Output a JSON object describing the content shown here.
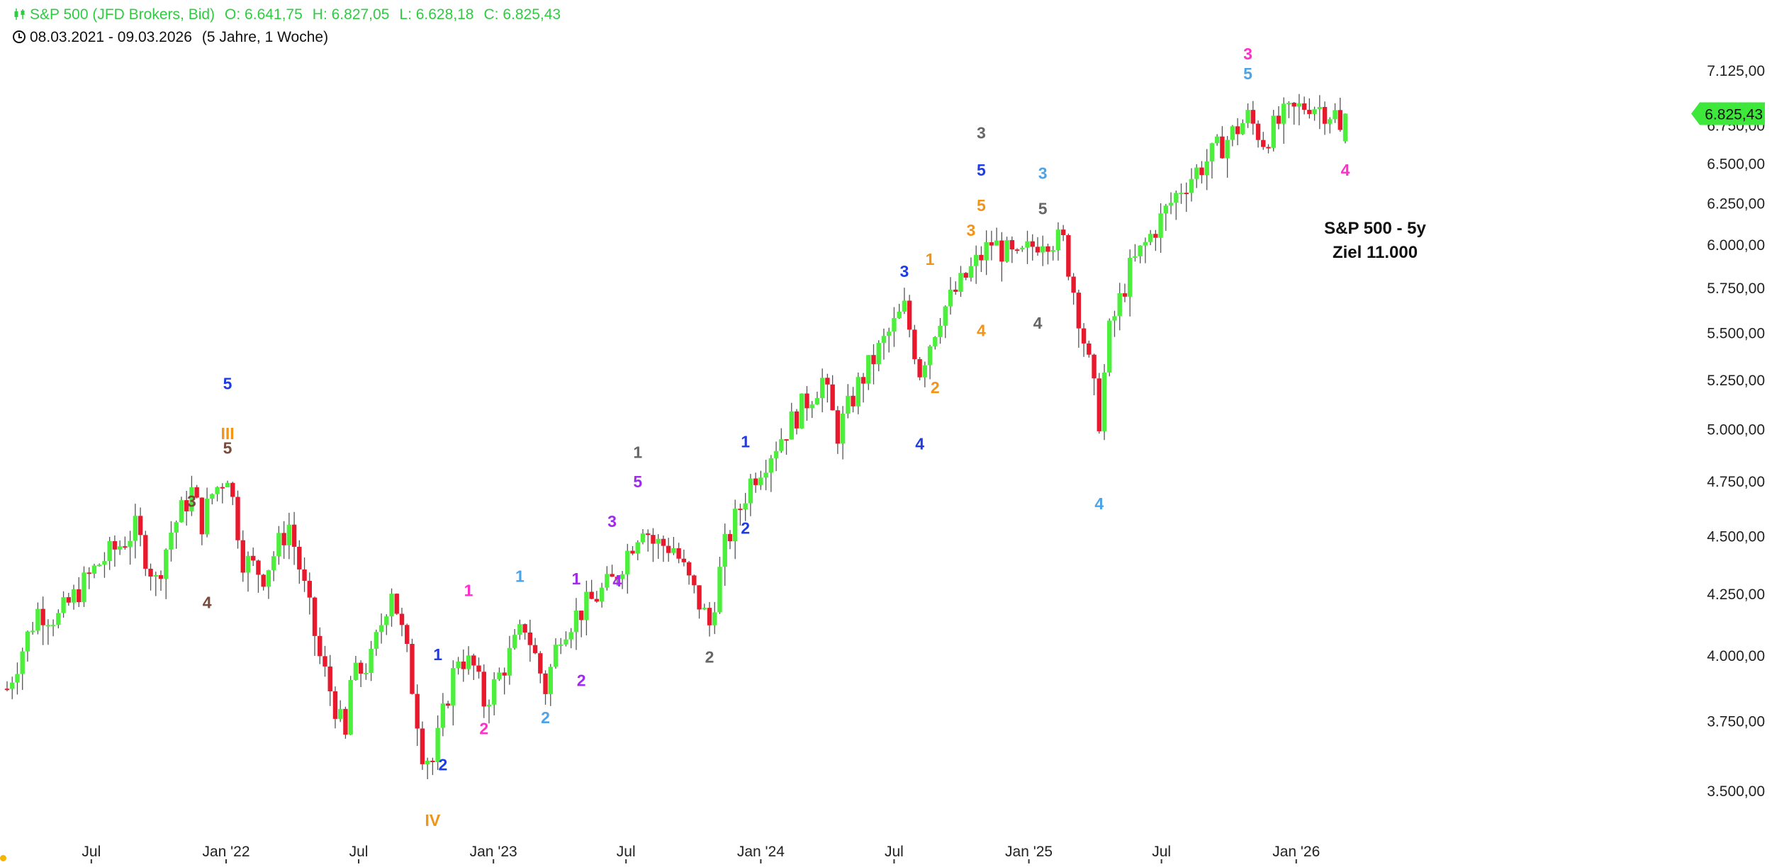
{
  "header": {
    "symbol": "S&P 500 (JFD Brokers, Bid)",
    "open": "O: 6.641,75",
    "high": "H: 6.827,05",
    "low": "L: 6.628,18",
    "close": "C: 6.825,43",
    "range": "08.03.2021 - 09.03.2026",
    "interval": "(5 Jahre, 1 Woche)"
  },
  "annotation": {
    "line1": "S&P 500 - 5y",
    "line2": "Ziel 11.000"
  },
  "colors": {
    "up": "#4cf03c",
    "down": "#e8192c",
    "wick": "#555555",
    "price_tag": "#3ee83a",
    "axis_text": "#222222"
  },
  "chart_data": {
    "type": "candlestick",
    "title": "S&P 500 (JFD Brokers, Bid)",
    "period": "5 Jahre, 1 Woche",
    "y_scale": "log",
    "ylim": [
      3400,
      7300
    ],
    "x_range": [
      "2021-03-08",
      "2026-03-09"
    ],
    "y_ticks": [
      {
        "value": 3500,
        "label": "3.500,00"
      },
      {
        "value": 3750,
        "label": "3.750,00"
      },
      {
        "value": 4000,
        "label": "4.000,00"
      },
      {
        "value": 4250,
        "label": "4.250,00"
      },
      {
        "value": 4500,
        "label": "4.500,00"
      },
      {
        "value": 4750,
        "label": "4.750,00"
      },
      {
        "value": 5000,
        "label": "5.000,00"
      },
      {
        "value": 5250,
        "label": "5.250,00"
      },
      {
        "value": 5500,
        "label": "5.500,00"
      },
      {
        "value": 5750,
        "label": "5.750,00"
      },
      {
        "value": 6000,
        "label": "6.000,00"
      },
      {
        "value": 6250,
        "label": "6.250,00"
      },
      {
        "value": 6500,
        "label": "6.500,00"
      },
      {
        "value": 6750,
        "label": "6.750,00"
      },
      {
        "value": 7125,
        "label": "7.125,00"
      }
    ],
    "x_ticks": [
      {
        "date": "2021-07-01",
        "label": "Jul"
      },
      {
        "date": "2022-01-01",
        "label": "Jan '22"
      },
      {
        "date": "2022-07-01",
        "label": "Jul"
      },
      {
        "date": "2023-01-01",
        "label": "Jan '23"
      },
      {
        "date": "2023-07-01",
        "label": "Jul"
      },
      {
        "date": "2024-01-01",
        "label": "Jan '24"
      },
      {
        "date": "2024-07-01",
        "label": "Jul"
      },
      {
        "date": "2025-01-01",
        "label": "Jan '25"
      },
      {
        "date": "2025-07-01",
        "label": "Jul"
      },
      {
        "date": "2026-01-01",
        "label": "Jan '26"
      }
    ],
    "last_price": {
      "value": 6825.43,
      "label": "6.825,43"
    },
    "path": [
      [
        "2021-03-08",
        3870
      ],
      [
        "2021-04-19",
        4180
      ],
      [
        "2021-05-17",
        4150
      ],
      [
        "2021-07-12",
        4380
      ],
      [
        "2021-08-09",
        4460
      ],
      [
        "2021-08-30",
        4530
      ],
      [
        "2021-09-27",
        4300
      ],
      [
        "2021-10-18",
        4520
      ],
      [
        "2021-11-15",
        4700
      ],
      [
        "2021-11-29",
        4560
      ],
      [
        "2021-12-13",
        4690
      ],
      [
        "2022-01-03",
        4790
      ],
      [
        "2022-01-24",
        4400
      ],
      [
        "2022-02-21",
        4330
      ],
      [
        "2022-03-28",
        4550
      ],
      [
        "2022-05-09",
        3990
      ],
      [
        "2022-06-13",
        3680
      ],
      [
        "2022-06-20",
        3900
      ],
      [
        "2022-07-18",
        3980
      ],
      [
        "2022-08-15",
        4280
      ],
      [
        "2022-09-05",
        4000
      ],
      [
        "2022-09-26",
        3640
      ],
      [
        "2022-10-10",
        3600
      ],
      [
        "2022-10-31",
        3850
      ],
      [
        "2022-11-14",
        4000
      ],
      [
        "2022-12-05",
        3950
      ],
      [
        "2022-12-19",
        3820
      ],
      [
        "2023-01-02",
        3880
      ],
      [
        "2023-02-13",
        4120
      ],
      [
        "2023-03-13",
        3870
      ],
      [
        "2023-04-03",
        4100
      ],
      [
        "2023-06-12",
        4300
      ],
      [
        "2023-07-24",
        4560
      ],
      [
        "2023-08-07",
        4470
      ],
      [
        "2023-09-04",
        4450
      ],
      [
        "2023-09-25",
        4300
      ],
      [
        "2023-10-23",
        4120
      ],
      [
        "2023-11-13",
        4450
      ],
      [
        "2023-12-18",
        4750
      ],
      [
        "2024-02-05",
        5000
      ],
      [
        "2024-03-25",
        5250
      ],
      [
        "2024-04-15",
        4980
      ],
      [
        "2024-05-13",
        5220
      ],
      [
        "2024-06-17",
        5450
      ],
      [
        "2024-07-15",
        5630
      ],
      [
        "2024-08-05",
        5300
      ],
      [
        "2024-09-02",
        5600
      ],
      [
        "2024-10-14",
        5850
      ],
      [
        "2024-11-11",
        6010
      ],
      [
        "2024-12-16",
        5900
      ],
      [
        "2025-01-20",
        6050
      ],
      [
        "2025-02-17",
        6010
      ],
      [
        "2025-03-10",
        5600
      ],
      [
        "2025-04-07",
        5050
      ],
      [
        "2025-04-21",
        5500
      ],
      [
        "2025-05-19",
        5850
      ],
      [
        "2025-06-23",
        6100
      ],
      [
        "2025-07-28",
        6350
      ],
      [
        "2025-09-08",
        6550
      ],
      [
        "2025-10-27",
        6800
      ],
      [
        "2025-11-17",
        6650
      ],
      [
        "2025-12-15",
        6800
      ],
      [
        "2026-01-19",
        6900
      ],
      [
        "2026-02-23",
        6820
      ],
      [
        "2026-03-02",
        6690
      ],
      [
        "2026-03-09",
        6825.43
      ]
    ],
    "wave_labels": [
      {
        "text": "III",
        "date": "2022-01-03",
        "price": 4950,
        "color": "#f29418"
      },
      {
        "text": "5",
        "date": "2022-01-03",
        "price": 5200,
        "color": "#1e3ce6"
      },
      {
        "text": "5",
        "date": "2022-01-03",
        "price": 4880,
        "color": "#7a4a3a"
      },
      {
        "text": "3",
        "date": "2021-11-15",
        "price": 4630,
        "color": "#7a4a3a"
      },
      {
        "text": "4",
        "date": "2021-12-06",
        "price": 4190,
        "color": "#7a4a3a"
      },
      {
        "text": "IV",
        "date": "2022-10-10",
        "price": 3380,
        "color": "#f29418"
      },
      {
        "text": "1",
        "date": "2022-10-17",
        "price": 3980,
        "color": "#1e3ce6"
      },
      {
        "text": "2",
        "date": "2022-10-24",
        "price": 3570,
        "color": "#1e3ce6"
      },
      {
        "text": "1",
        "date": "2022-11-28",
        "price": 4240,
        "color": "#ff2fc9"
      },
      {
        "text": "2",
        "date": "2022-12-19",
        "price": 3700,
        "color": "#ff2fc9"
      },
      {
        "text": "1",
        "date": "2023-02-06",
        "price": 4300,
        "color": "#4ba3e8"
      },
      {
        "text": "2",
        "date": "2023-03-13",
        "price": 3740,
        "color": "#4ba3e8"
      },
      {
        "text": "1",
        "date": "2023-04-24",
        "price": 4290,
        "color": "#a02be8"
      },
      {
        "text": "2",
        "date": "2023-05-01",
        "price": 3880,
        "color": "#a02be8"
      },
      {
        "text": "3",
        "date": "2023-06-12",
        "price": 4540,
        "color": "#a02be8"
      },
      {
        "text": "4",
        "date": "2023-06-19",
        "price": 4280,
        "color": "#a02be8"
      },
      {
        "text": "5",
        "date": "2023-07-17",
        "price": 4720,
        "color": "#a02be8"
      },
      {
        "text": "1",
        "date": "2023-07-17",
        "price": 4860,
        "color": "#666666"
      },
      {
        "text": "2",
        "date": "2023-10-23",
        "price": 3970,
        "color": "#666666"
      },
      {
        "text": "1",
        "date": "2023-12-11",
        "price": 4910,
        "color": "#1e3ce6"
      },
      {
        "text": "2",
        "date": "2023-12-11",
        "price": 4510,
        "color": "#1e3ce6"
      },
      {
        "text": "3",
        "date": "2024-07-15",
        "price": 5810,
        "color": "#1e3ce6"
      },
      {
        "text": "4",
        "date": "2024-08-05",
        "price": 4900,
        "color": "#1e3ce6"
      },
      {
        "text": "1",
        "date": "2024-08-19",
        "price": 5880,
        "color": "#f29418"
      },
      {
        "text": "2",
        "date": "2024-08-26",
        "price": 5180,
        "color": "#f29418"
      },
      {
        "text": "3",
        "date": "2024-10-14",
        "price": 6050,
        "color": "#f29418"
      },
      {
        "text": "4",
        "date": "2024-10-28",
        "price": 5480,
        "color": "#f29418"
      },
      {
        "text": "5",
        "date": "2024-10-28",
        "price": 6200,
        "color": "#f29418"
      },
      {
        "text": "5",
        "date": "2024-10-28",
        "price": 6420,
        "color": "#1e3ce6"
      },
      {
        "text": "3",
        "date": "2024-10-28",
        "price": 6660,
        "color": "#666666"
      },
      {
        "text": "3",
        "date": "2025-01-20",
        "price": 6400,
        "color": "#4ba3e8"
      },
      {
        "text": "5",
        "date": "2025-01-20",
        "price": 6180,
        "color": "#666666"
      },
      {
        "text": "4",
        "date": "2025-01-13",
        "price": 5520,
        "color": "#666666"
      },
      {
        "text": "4",
        "date": "2025-04-07",
        "price": 4620,
        "color": "#4ba3e8"
      },
      {
        "text": "3",
        "date": "2025-10-27",
        "price": 7200,
        "color": "#ff2fc9"
      },
      {
        "text": "5",
        "date": "2025-10-27",
        "price": 7060,
        "color": "#4ba3e8"
      },
      {
        "text": "4",
        "date": "2026-03-09",
        "price": 6420,
        "color": "#ff2fc9"
      }
    ]
  }
}
